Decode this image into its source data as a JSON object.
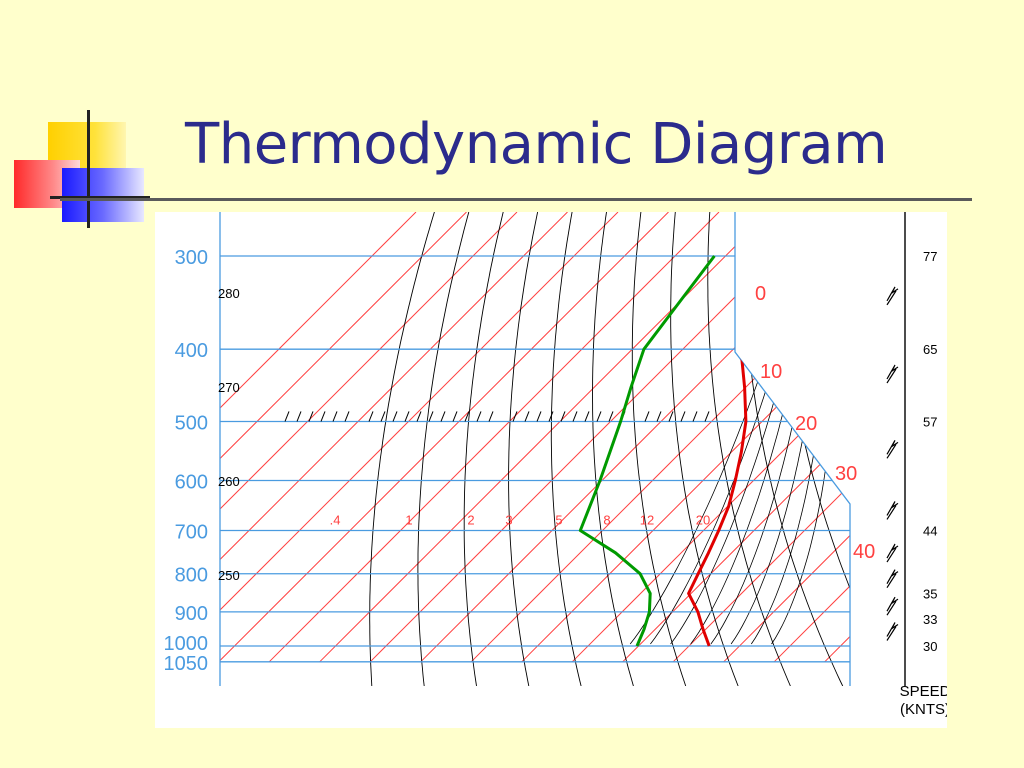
{
  "slide": {
    "title": "Thermodynamic Diagram"
  },
  "colors": {
    "background": "#ffffcc",
    "title": "#2b2b8c",
    "isobar": "#4a9be0",
    "isotherm": "#ff4040",
    "temperature": "#e00000",
    "dewpoint": "#009a00",
    "adiabat": "#000000"
  },
  "chart_data": {
    "type": "line",
    "pressure_levels": [
      {
        "label": "300",
        "p": 300
      },
      {
        "label": "400",
        "p": 400
      },
      {
        "label": "500",
        "p": 500
      },
      {
        "label": "600",
        "p": 600
      },
      {
        "label": "700",
        "p": 700
      },
      {
        "label": "800",
        "p": 800
      },
      {
        "label": "900",
        "p": 900
      },
      {
        "label": "1000",
        "p": 1000
      },
      {
        "label": "1050",
        "p": 1050
      }
    ],
    "isotherm_labels": [
      "0",
      "10",
      "20",
      "30",
      "40"
    ],
    "potential_temperature_labels": [
      "280",
      "270",
      "260",
      "250"
    ],
    "mixing_ratio_labels": [
      ".4",
      "1",
      "2",
      "3",
      "5",
      "8",
      "12",
      "20"
    ],
    "wind_speed_labels": [
      {
        "label": "77",
        "p": 300
      },
      {
        "label": "65",
        "p": 400
      },
      {
        "label": "57",
        "p": 500
      },
      {
        "label": "44",
        "p": 700
      },
      {
        "label": "35",
        "p": 850
      },
      {
        "label": "33",
        "p": 920
      },
      {
        "label": "30",
        "p": 1000
      }
    ],
    "wind_axis_label": [
      "SPEED",
      "(KNTS)"
    ],
    "series": [
      {
        "points": [
          {
            "p": 280,
            "t": -46.5
          },
          {
            "p": 300,
            "t": -44.8
          },
          {
            "p": 350,
            "t": -36
          },
          {
            "p": 400,
            "t": -28.5
          },
          {
            "p": 450,
            "t": -20.2
          },
          {
            "p": 500,
            "t": -13.2
          },
          {
            "p": 550,
            "t": -8
          },
          {
            "p": 600,
            "t": -3.6
          },
          {
            "p": 650,
            "t": 0.2
          },
          {
            "p": 700,
            "t": 3
          },
          {
            "p": 750,
            "t": 5.4
          },
          {
            "p": 800,
            "t": 7.5
          },
          {
            "p": 850,
            "t": 9.5
          },
          {
            "p": 900,
            "t": 15
          },
          {
            "p": 950,
            "t": 19.5
          },
          {
            "p": 1000,
            "t": 24
          }
        ]
      },
      {
        "points": [
          {
            "p": 300,
            "t": -52.2
          },
          {
            "p": 350,
            "t": -49.8
          },
          {
            "p": 400,
            "t": -47.7
          },
          {
            "p": 450,
            "t": -42.7
          },
          {
            "p": 500,
            "t": -38
          },
          {
            "p": 600,
            "t": -30.4
          },
          {
            "p": 700,
            "t": -24.4
          },
          {
            "p": 750,
            "t": -13
          },
          {
            "p": 800,
            "t": -4
          },
          {
            "p": 850,
            "t": 1.9
          },
          {
            "p": 900,
            "t": 5.4
          },
          {
            "p": 950,
            "t": 7.8
          },
          {
            "p": 1000,
            "t": 9.7
          }
        ]
      }
    ]
  }
}
